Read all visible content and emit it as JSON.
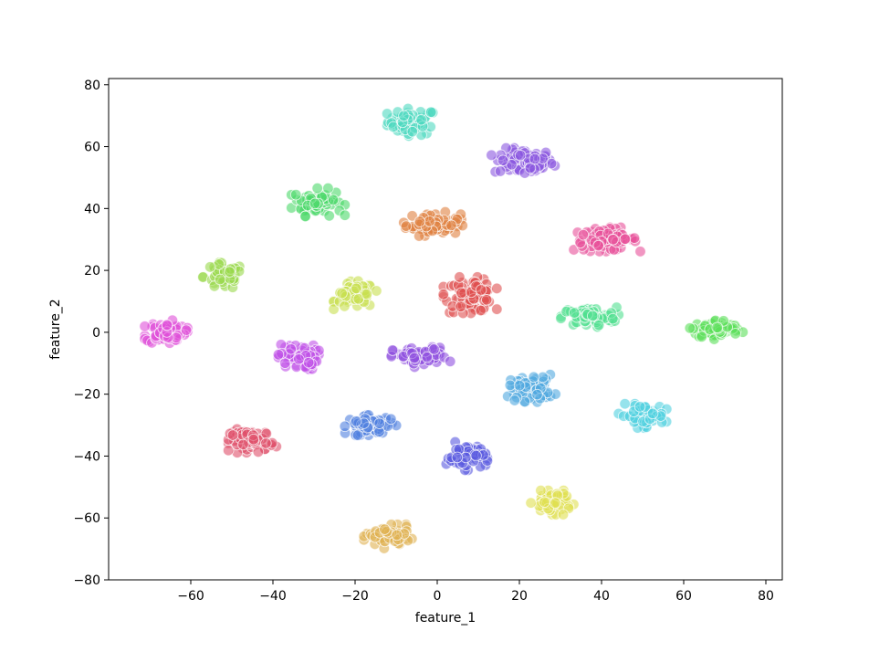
{
  "chart_data": {
    "type": "scatter",
    "title": "",
    "xlabel": "feature_1",
    "ylabel": "feature_2",
    "xlim": [
      -80,
      84
    ],
    "ylim": [
      -80,
      82
    ],
    "xticks": [
      -60,
      -40,
      -20,
      0,
      20,
      40,
      60,
      80
    ],
    "yticks": [
      -80,
      -60,
      -40,
      -20,
      0,
      20,
      40,
      60,
      80
    ],
    "xtick_labels": [
      "−60",
      "−40",
      "−20",
      "0",
      "20",
      "40",
      "60",
      "80"
    ],
    "ytick_labels": [
      "−80",
      "−60",
      "−40",
      "−20",
      "0",
      "20",
      "40",
      "60",
      "80"
    ],
    "grid": false,
    "legend": "none",
    "point_alpha": 0.6,
    "clusters": [
      {
        "color": "#4fd8c0",
        "center": [
          -6,
          68
        ],
        "spread": [
          5,
          3.5
        ],
        "n": 60
      },
      {
        "color": "#8a57e0",
        "center": [
          21,
          55
        ],
        "spread": [
          6,
          3.5
        ],
        "n": 80
      },
      {
        "color": "#4cd86a",
        "center": [
          -29,
          42
        ],
        "spread": [
          5,
          3.5
        ],
        "n": 65
      },
      {
        "color": "#e08040",
        "center": [
          -1,
          35
        ],
        "spread": [
          5.5,
          3
        ],
        "n": 70
      },
      {
        "color": "#e8509a",
        "center": [
          41,
          30
        ],
        "spread": [
          6.5,
          3
        ],
        "n": 75
      },
      {
        "color": "#9ad84c",
        "center": [
          -52,
          18
        ],
        "spread": [
          4,
          3.5
        ],
        "n": 55
      },
      {
        "color": "#c8e050",
        "center": [
          -20,
          12
        ],
        "spread": [
          4,
          3.5
        ],
        "n": 60
      },
      {
        "color": "#e05050",
        "center": [
          8,
          12
        ],
        "spread": [
          5,
          4.5
        ],
        "n": 80
      },
      {
        "color": "#50e090",
        "center": [
          37,
          5
        ],
        "spread": [
          5.5,
          2.5
        ],
        "n": 75
      },
      {
        "color": "#5ce05a",
        "center": [
          68,
          1
        ],
        "spread": [
          5,
          2.5
        ],
        "n": 70
      },
      {
        "color": "#e050d8",
        "center": [
          -66,
          0
        ],
        "spread": [
          4,
          3
        ],
        "n": 70
      },
      {
        "color": "#c050e8",
        "center": [
          -34,
          -8
        ],
        "spread": [
          4,
          3.5
        ],
        "n": 65
      },
      {
        "color": "#9050e0",
        "center": [
          -4,
          -8
        ],
        "spread": [
          5.5,
          2.5
        ],
        "n": 65
      },
      {
        "color": "#50a8e0",
        "center": [
          23,
          -18
        ],
        "spread": [
          4.5,
          3.5
        ],
        "n": 70
      },
      {
        "color": "#50d0e0",
        "center": [
          50,
          -27
        ],
        "spread": [
          4.5,
          3
        ],
        "n": 65
      },
      {
        "color": "#e0506a",
        "center": [
          -45,
          -35
        ],
        "spread": [
          4.5,
          3
        ],
        "n": 70
      },
      {
        "color": "#5080e0",
        "center": [
          -16,
          -30
        ],
        "spread": [
          5,
          2.5
        ],
        "n": 65
      },
      {
        "color": "#5858e0",
        "center": [
          7,
          -40
        ],
        "spread": [
          4,
          3.5
        ],
        "n": 60
      },
      {
        "color": "#e0e050",
        "center": [
          28,
          -55
        ],
        "spread": [
          4,
          3
        ],
        "n": 55
      },
      {
        "color": "#e0b050",
        "center": [
          -12,
          -66
        ],
        "spread": [
          4.5,
          3
        ],
        "n": 65
      }
    ]
  }
}
